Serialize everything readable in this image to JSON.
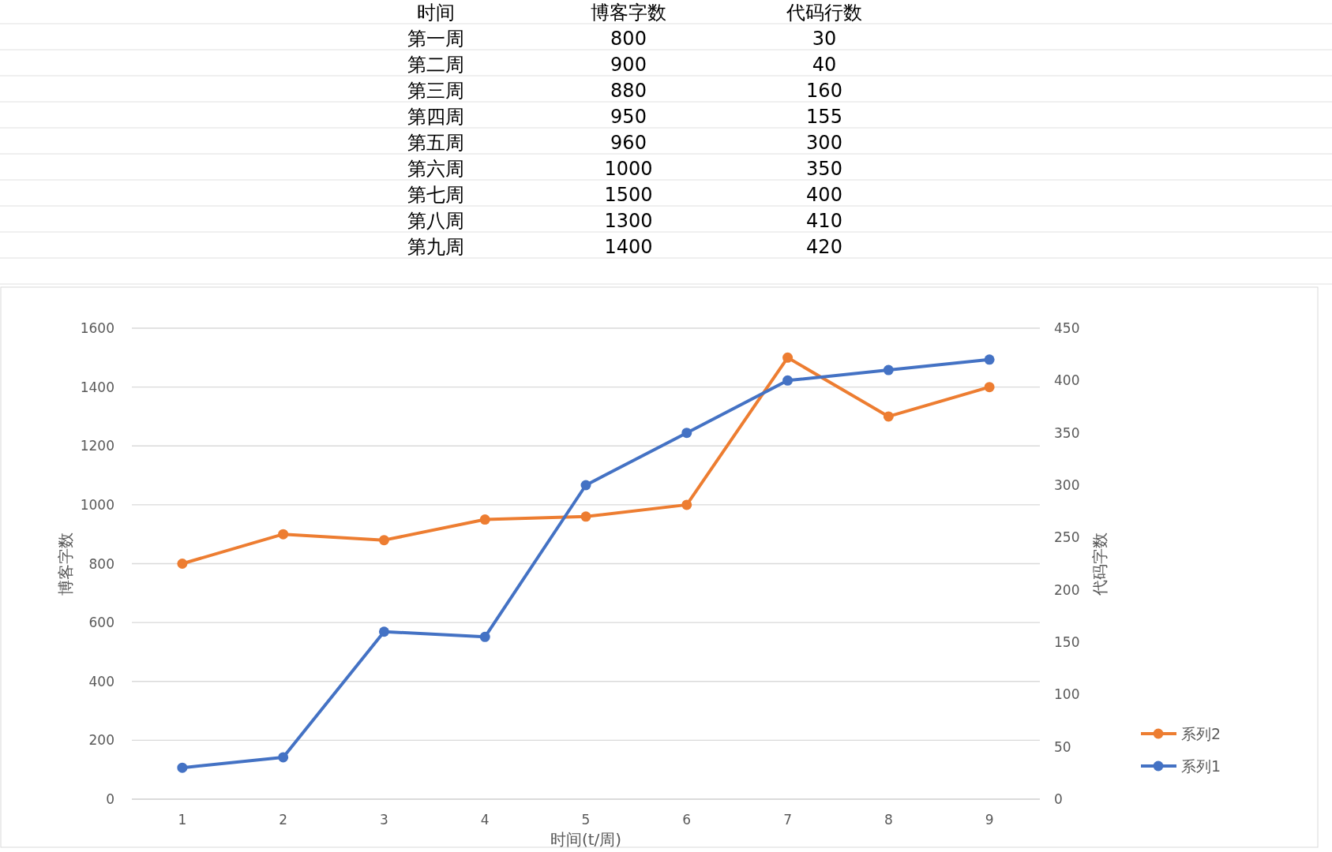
{
  "chart_data": {
    "type": "line",
    "categories": [
      "1",
      "2",
      "3",
      "4",
      "5",
      "6",
      "7",
      "8",
      "9"
    ],
    "series": [
      {
        "name": "系列2",
        "color": "#ed7d31",
        "axis": "y",
        "values": [
          800,
          900,
          880,
          950,
          960,
          1000,
          1500,
          1300,
          1400
        ]
      },
      {
        "name": "系列1",
        "color": "#4472c4",
        "axis": "y2",
        "values": [
          30,
          40,
          160,
          155,
          300,
          350,
          400,
          410,
          420
        ]
      }
    ],
    "xlabel": "时间(t/周)",
    "ylabel": "博客字数",
    "y2label": "代码字数",
    "ylim": [
      0,
      1600
    ],
    "yticks": [
      0,
      200,
      400,
      600,
      800,
      1000,
      1200,
      1400,
      1600
    ],
    "y2lim": [
      0,
      450
    ],
    "y2ticks": [
      0,
      50,
      100,
      150,
      200,
      250,
      300,
      350,
      400,
      450
    ],
    "grid": "y",
    "legend": "right",
    "marker": "circle",
    "line_style": "solid",
    "annotations": [
      "时间",
      "博客字数",
      "代码行数",
      "第一周",
      "800",
      "30",
      "第二周",
      "900",
      "40",
      "第三周",
      "880",
      "160",
      "第四周",
      "950",
      "155",
      "第五周",
      "960",
      "300",
      "第六周",
      "1000",
      "350",
      "第七周",
      "1500",
      "400",
      "第八周",
      "1300",
      "410",
      "第九周",
      "1400",
      "420"
    ]
  }
}
